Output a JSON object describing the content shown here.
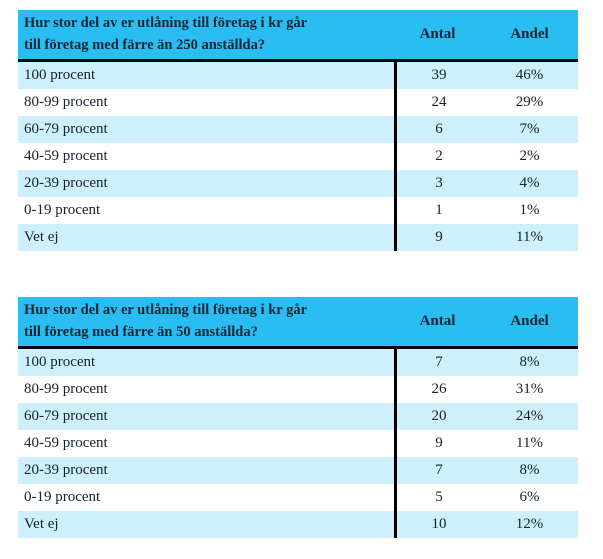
{
  "colors": {
    "header_bg": "#29bdf2",
    "row_alt_bg": "#ceeffc",
    "row_bg": "#ffffff",
    "text": "#15212e",
    "divider": "#000000"
  },
  "tables": [
    {
      "question": "Hur stor del av er utlåning till företag i kr går till företag med färre än 250 anställda?",
      "question_lines": [
        "Hur stor del av er utlåning till företag i kr går",
        "till företag med färre än 250 anställda?"
      ],
      "columns": [
        "Antal",
        "Andel"
      ],
      "rows": [
        {
          "label": "100 procent",
          "antal": "39",
          "andel": "46%"
        },
        {
          "label": "80-99 procent",
          "antal": "24",
          "andel": "29%"
        },
        {
          "label": "60-79 procent",
          "antal": "6",
          "andel": "7%"
        },
        {
          "label": "40-59 procent",
          "antal": "2",
          "andel": "2%"
        },
        {
          "label": "20-39 procent",
          "antal": "3",
          "andel": "4%"
        },
        {
          "label": "0-19 procent",
          "antal": "1",
          "andel": "1%"
        },
        {
          "label": "Vet ej",
          "antal": "9",
          "andel": "11%"
        }
      ]
    },
    {
      "question": "Hur stor del av er utlåning till företag i kr går till företag med färre än 50 anställda?",
      "question_lines": [
        "Hur stor del av er utlåning till företag i kr går",
        "till företag med färre än 50 anställda?"
      ],
      "columns": [
        "Antal",
        "Andel"
      ],
      "rows": [
        {
          "label": "100 procent",
          "antal": "7",
          "andel": "8%"
        },
        {
          "label": "80-99 procent",
          "antal": "26",
          "andel": "31%"
        },
        {
          "label": "60-79 procent",
          "antal": "20",
          "andel": "24%"
        },
        {
          "label": "40-59 procent",
          "antal": "9",
          "andel": "11%"
        },
        {
          "label": "20-39 procent",
          "antal": "7",
          "andel": "8%"
        },
        {
          "label": "0-19 procent",
          "antal": "5",
          "andel": "6%"
        },
        {
          "label": "Vet ej",
          "antal": "10",
          "andel": "12%"
        }
      ]
    }
  ]
}
